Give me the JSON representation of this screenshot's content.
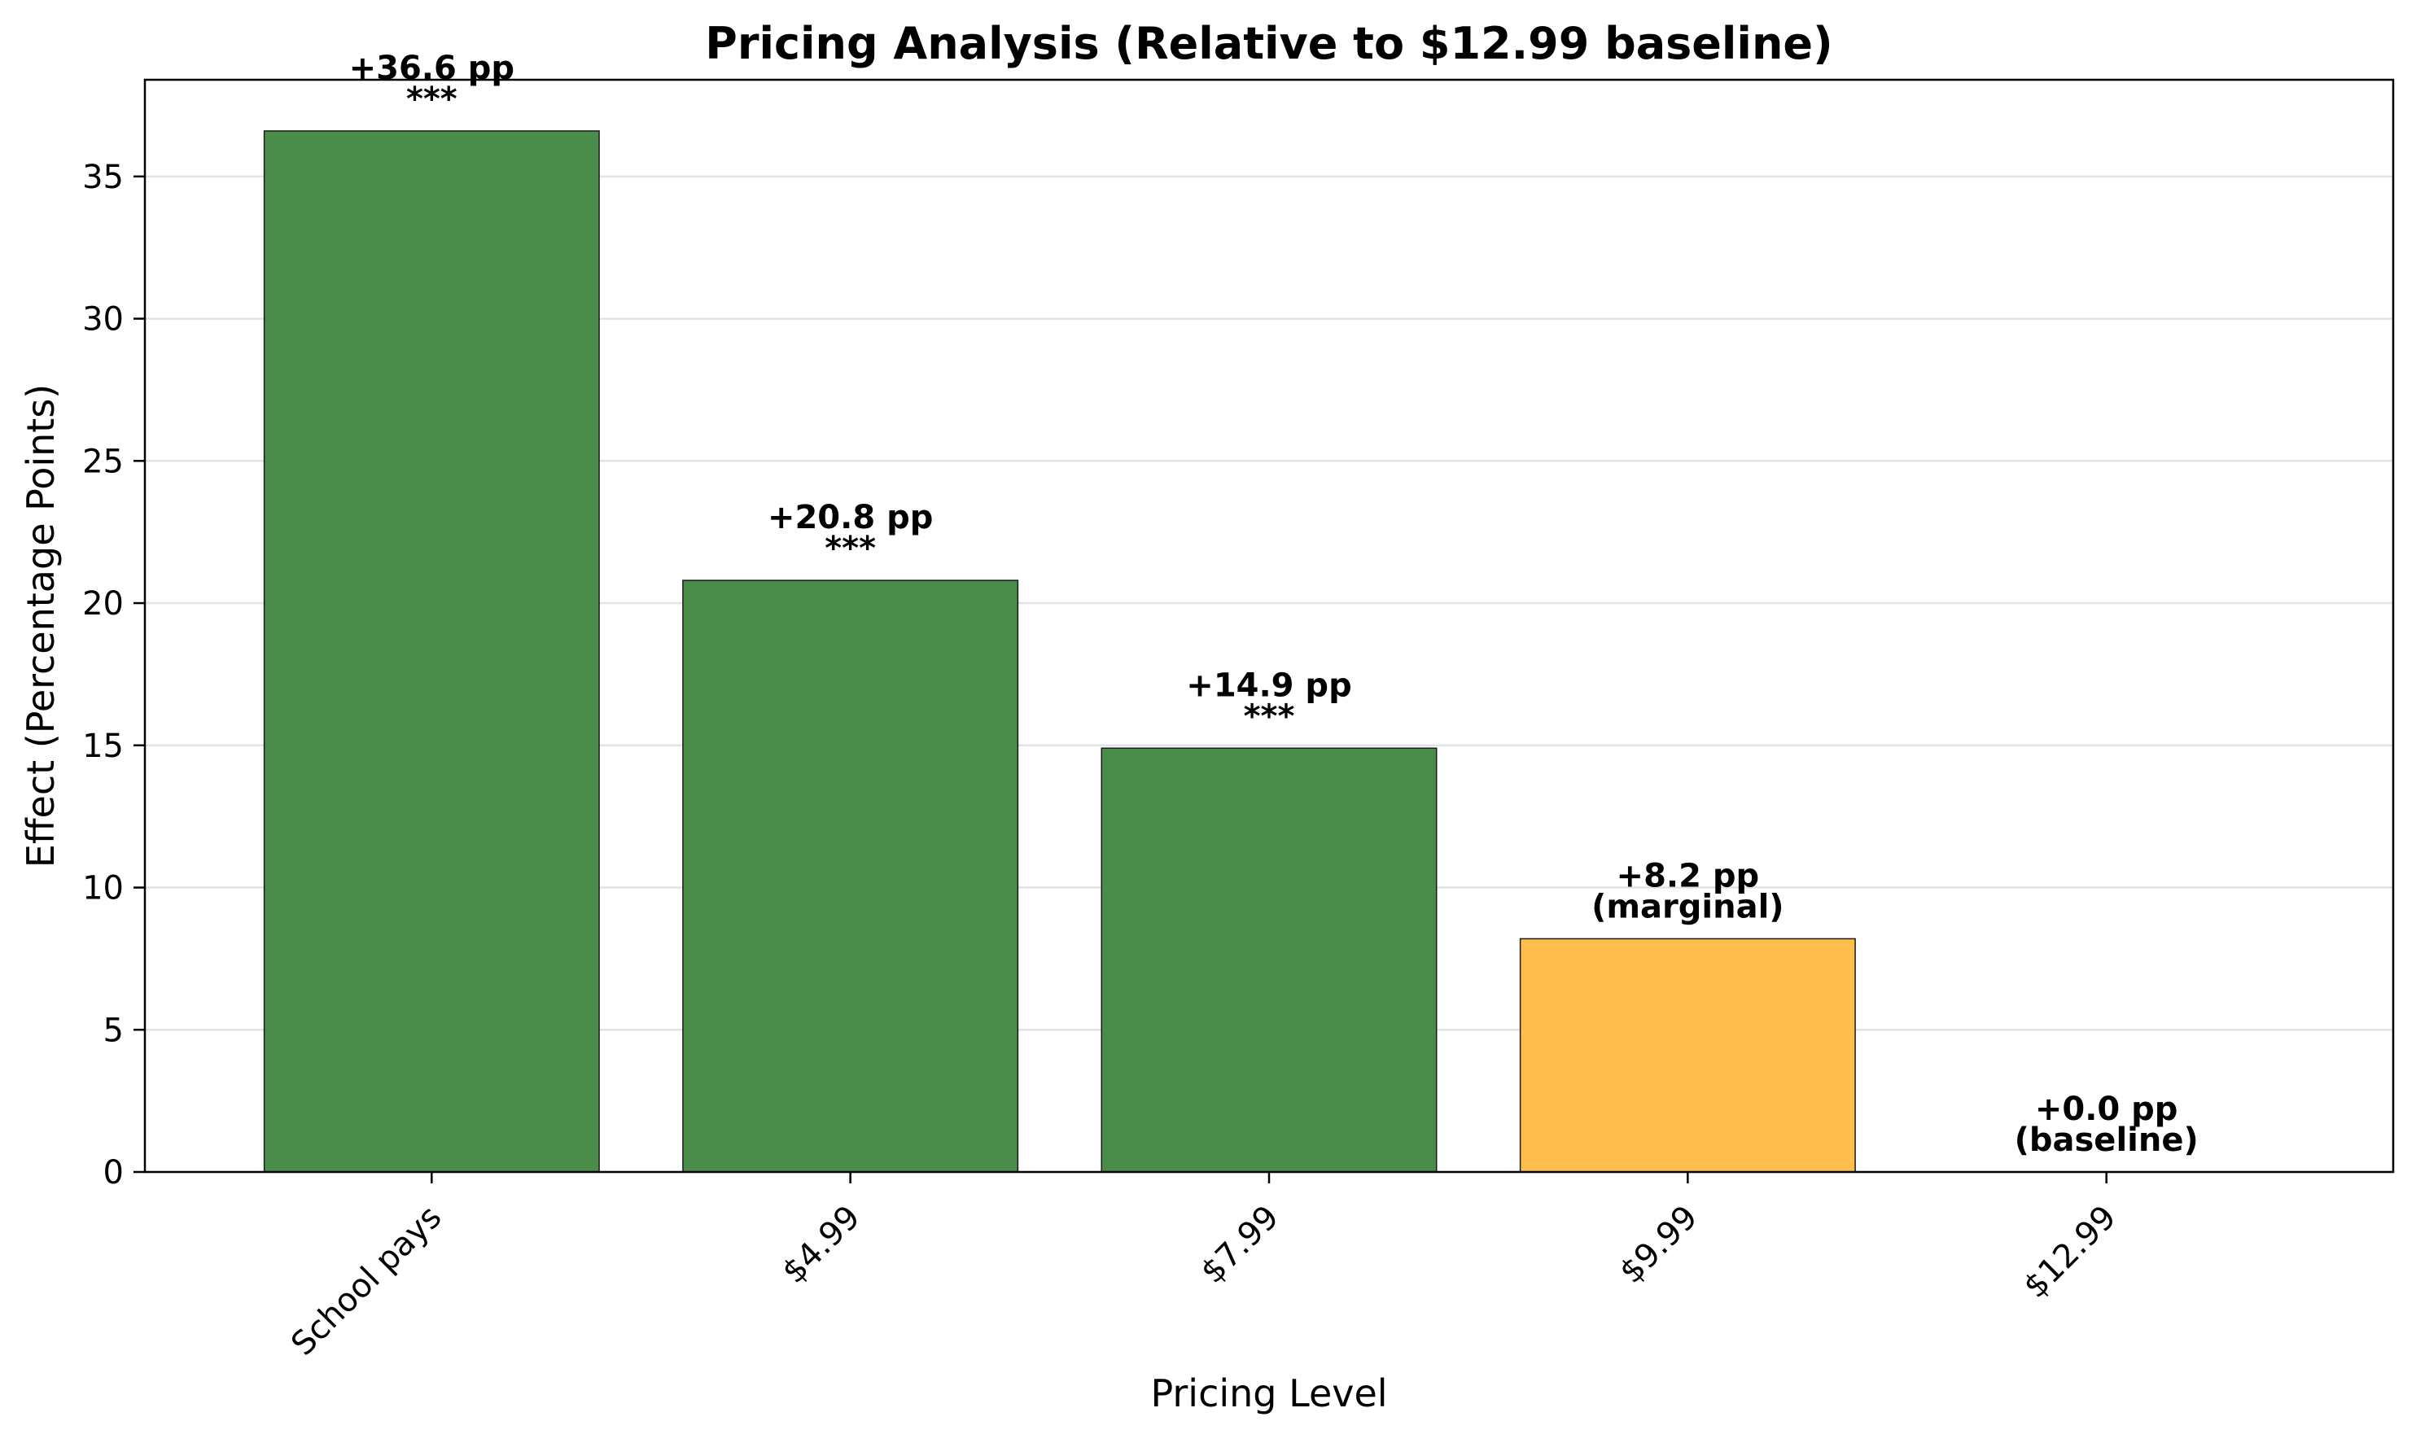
{
  "chart_data": {
    "type": "bar",
    "title": "Pricing Analysis (Relative to $12.99 baseline)",
    "xlabel": "Pricing Level",
    "ylabel": "Effect (Percentage Points)",
    "categories": [
      "School pays",
      "$4.99",
      "$7.99",
      "$9.99",
      "$12.99"
    ],
    "values": [
      36.6,
      20.8,
      14.9,
      8.2,
      0.0
    ],
    "bar_colors": [
      "#4a8c4a",
      "#4a8c4a",
      "#4a8c4a",
      "#fdbe4b",
      "#4a8c4a"
    ],
    "bar_labels": [
      "+36.6 pp",
      "+20.8 pp",
      "+14.9 pp",
      "+8.2 pp",
      "+0.0 pp"
    ],
    "bar_annotations": [
      "***",
      "***",
      "***",
      "(marginal)",
      "(baseline)"
    ],
    "ylim": [
      0,
      38.4
    ],
    "yticks": [
      0,
      5,
      10,
      15,
      20,
      25,
      30,
      35
    ],
    "grid": "horizontal",
    "legend": "none"
  }
}
